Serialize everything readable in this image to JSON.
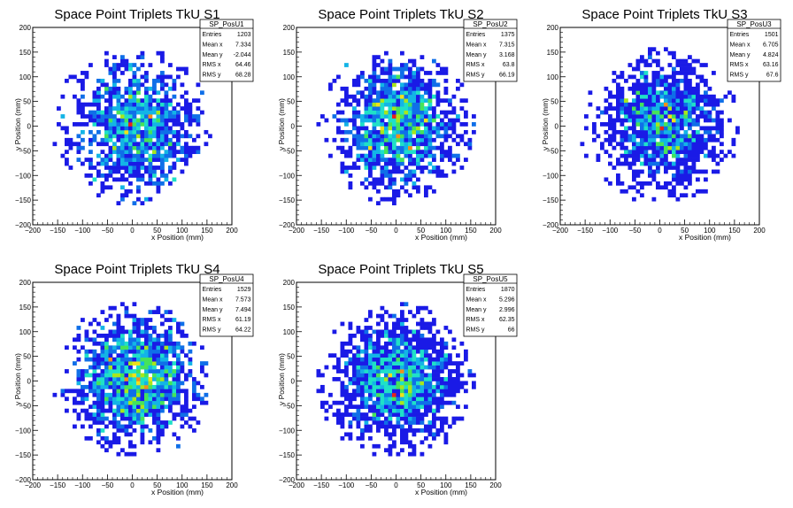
{
  "chart_data": [
    {
      "type": "heatmap",
      "title": "Space Point Triplets TkU S1",
      "xlabel": "x Position (mm)",
      "ylabel": "y Position (mm)",
      "xlim": [
        -200,
        200
      ],
      "ylim": [
        -200,
        200
      ],
      "xticks": [
        "−200",
        "−150",
        "−100",
        "−50",
        "0",
        "50",
        "100",
        "150",
        "200"
      ],
      "yticks": [
        "−200",
        "−150",
        "−100",
        "−50",
        "0",
        "50",
        "100",
        "150",
        "200"
      ],
      "stats": {
        "name": "SP_PosU1",
        "rows": [
          {
            "label": "Entries",
            "value": "1203"
          },
          {
            "label": "Mean x",
            "value": "7.334"
          },
          {
            "label": "Mean y",
            "value": "-2.044"
          },
          {
            "label": "RMS x",
            "value": "64.46"
          },
          {
            "label": "RMS y",
            "value": "68.28"
          }
        ]
      },
      "entries": 1203,
      "mean_x": 7.334,
      "mean_y": -2.044,
      "rms_x": 64.46,
      "rms_y": 68.28,
      "radius": 160,
      "bin_width": 8
    },
    {
      "type": "heatmap",
      "title": "Space Point Triplets TkU S2",
      "xlabel": "x Position (mm)",
      "ylabel": "y Position (mm)",
      "xlim": [
        -200,
        200
      ],
      "ylim": [
        -200,
        200
      ],
      "xticks": [
        "−200",
        "−150",
        "−100",
        "−50",
        "0",
        "50",
        "100",
        "150",
        "200"
      ],
      "yticks": [
        "−200",
        "−150",
        "−100",
        "−50",
        "0",
        "50",
        "100",
        "150",
        "200"
      ],
      "stats": {
        "name": "SP_PosU2",
        "rows": [
          {
            "label": "Entries",
            "value": "1375"
          },
          {
            "label": "Mean x",
            "value": "7.315"
          },
          {
            "label": "Mean y",
            "value": "3.168"
          },
          {
            "label": "RMS x",
            "value": "63.8"
          },
          {
            "label": "RMS y",
            "value": "66.19"
          }
        ]
      },
      "entries": 1375,
      "mean_x": 7.315,
      "mean_y": 3.168,
      "rms_x": 63.8,
      "rms_y": 66.19,
      "radius": 160,
      "bin_width": 8
    },
    {
      "type": "heatmap",
      "title": "Space Point Triplets TkU S3",
      "xlabel": "x Position (mm)",
      "ylabel": "y Position (mm)",
      "xlim": [
        -200,
        200
      ],
      "ylim": [
        -200,
        200
      ],
      "xticks": [
        "−200",
        "−150",
        "−100",
        "−50",
        "0",
        "50",
        "100",
        "150",
        "200"
      ],
      "yticks": [
        "−200",
        "−150",
        "−100",
        "−50",
        "0",
        "50",
        "100",
        "150",
        "200"
      ],
      "stats": {
        "name": "SP_PosU3",
        "rows": [
          {
            "label": "Entries",
            "value": "1501"
          },
          {
            "label": "Mean x",
            "value": "6.705"
          },
          {
            "label": "Mean y",
            "value": "4.824"
          },
          {
            "label": "RMS x",
            "value": "63.16"
          },
          {
            "label": "RMS y",
            "value": "67.6"
          }
        ]
      },
      "entries": 1501,
      "mean_x": 6.705,
      "mean_y": 4.824,
      "rms_x": 63.16,
      "rms_y": 67.6,
      "radius": 160,
      "bin_width": 8
    },
    {
      "type": "heatmap",
      "title": "Space Point Triplets TkU S4",
      "xlabel": "x Position (mm)",
      "ylabel": "y Position (mm)",
      "xlim": [
        -200,
        200
      ],
      "ylim": [
        -200,
        200
      ],
      "xticks": [
        "−200",
        "−150",
        "−100",
        "−50",
        "0",
        "50",
        "100",
        "150",
        "200"
      ],
      "yticks": [
        "−200",
        "−150",
        "−100",
        "−50",
        "0",
        "50",
        "100",
        "150",
        "200"
      ],
      "stats": {
        "name": "SP_PosU4",
        "rows": [
          {
            "label": "Entries",
            "value": "1529"
          },
          {
            "label": "Mean x",
            "value": "7.573"
          },
          {
            "label": "Mean y",
            "value": "7.494"
          },
          {
            "label": "RMS x",
            "value": "61.19"
          },
          {
            "label": "RMS y",
            "value": "64.22"
          }
        ]
      },
      "entries": 1529,
      "mean_x": 7.573,
      "mean_y": 7.494,
      "rms_x": 61.19,
      "rms_y": 64.22,
      "radius": 160,
      "bin_width": 8
    },
    {
      "type": "heatmap",
      "title": "Space Point Triplets TkU S5",
      "xlabel": "x Position (mm)",
      "ylabel": "y Position (mm)",
      "xlim": [
        -200,
        200
      ],
      "ylim": [
        -200,
        200
      ],
      "xticks": [
        "−200",
        "−150",
        "−100",
        "−50",
        "0",
        "50",
        "100",
        "150",
        "200"
      ],
      "yticks": [
        "−200",
        "−150",
        "−100",
        "−50",
        "0",
        "50",
        "100",
        "150",
        "200"
      ],
      "stats": {
        "name": "SP_PosU5",
        "rows": [
          {
            "label": "Entries",
            "value": "1870"
          },
          {
            "label": "Mean x",
            "value": "5.296"
          },
          {
            "label": "Mean y",
            "value": "2.996"
          },
          {
            "label": "RMS x",
            "value": "62.35"
          },
          {
            "label": "RMS y",
            "value": "66"
          }
        ]
      },
      "entries": 1870,
      "mean_x": 5.296,
      "mean_y": 2.996,
      "rms_x": 62.35,
      "rms_y": 66,
      "radius": 160,
      "bin_width": 8
    }
  ],
  "palette": [
    "#1a1ae6",
    "#0f6fe8",
    "#13b4e6",
    "#1fe0c8",
    "#45e35a",
    "#a8e61c",
    "#f0e11a",
    "#f2901a",
    "#e8241a"
  ]
}
